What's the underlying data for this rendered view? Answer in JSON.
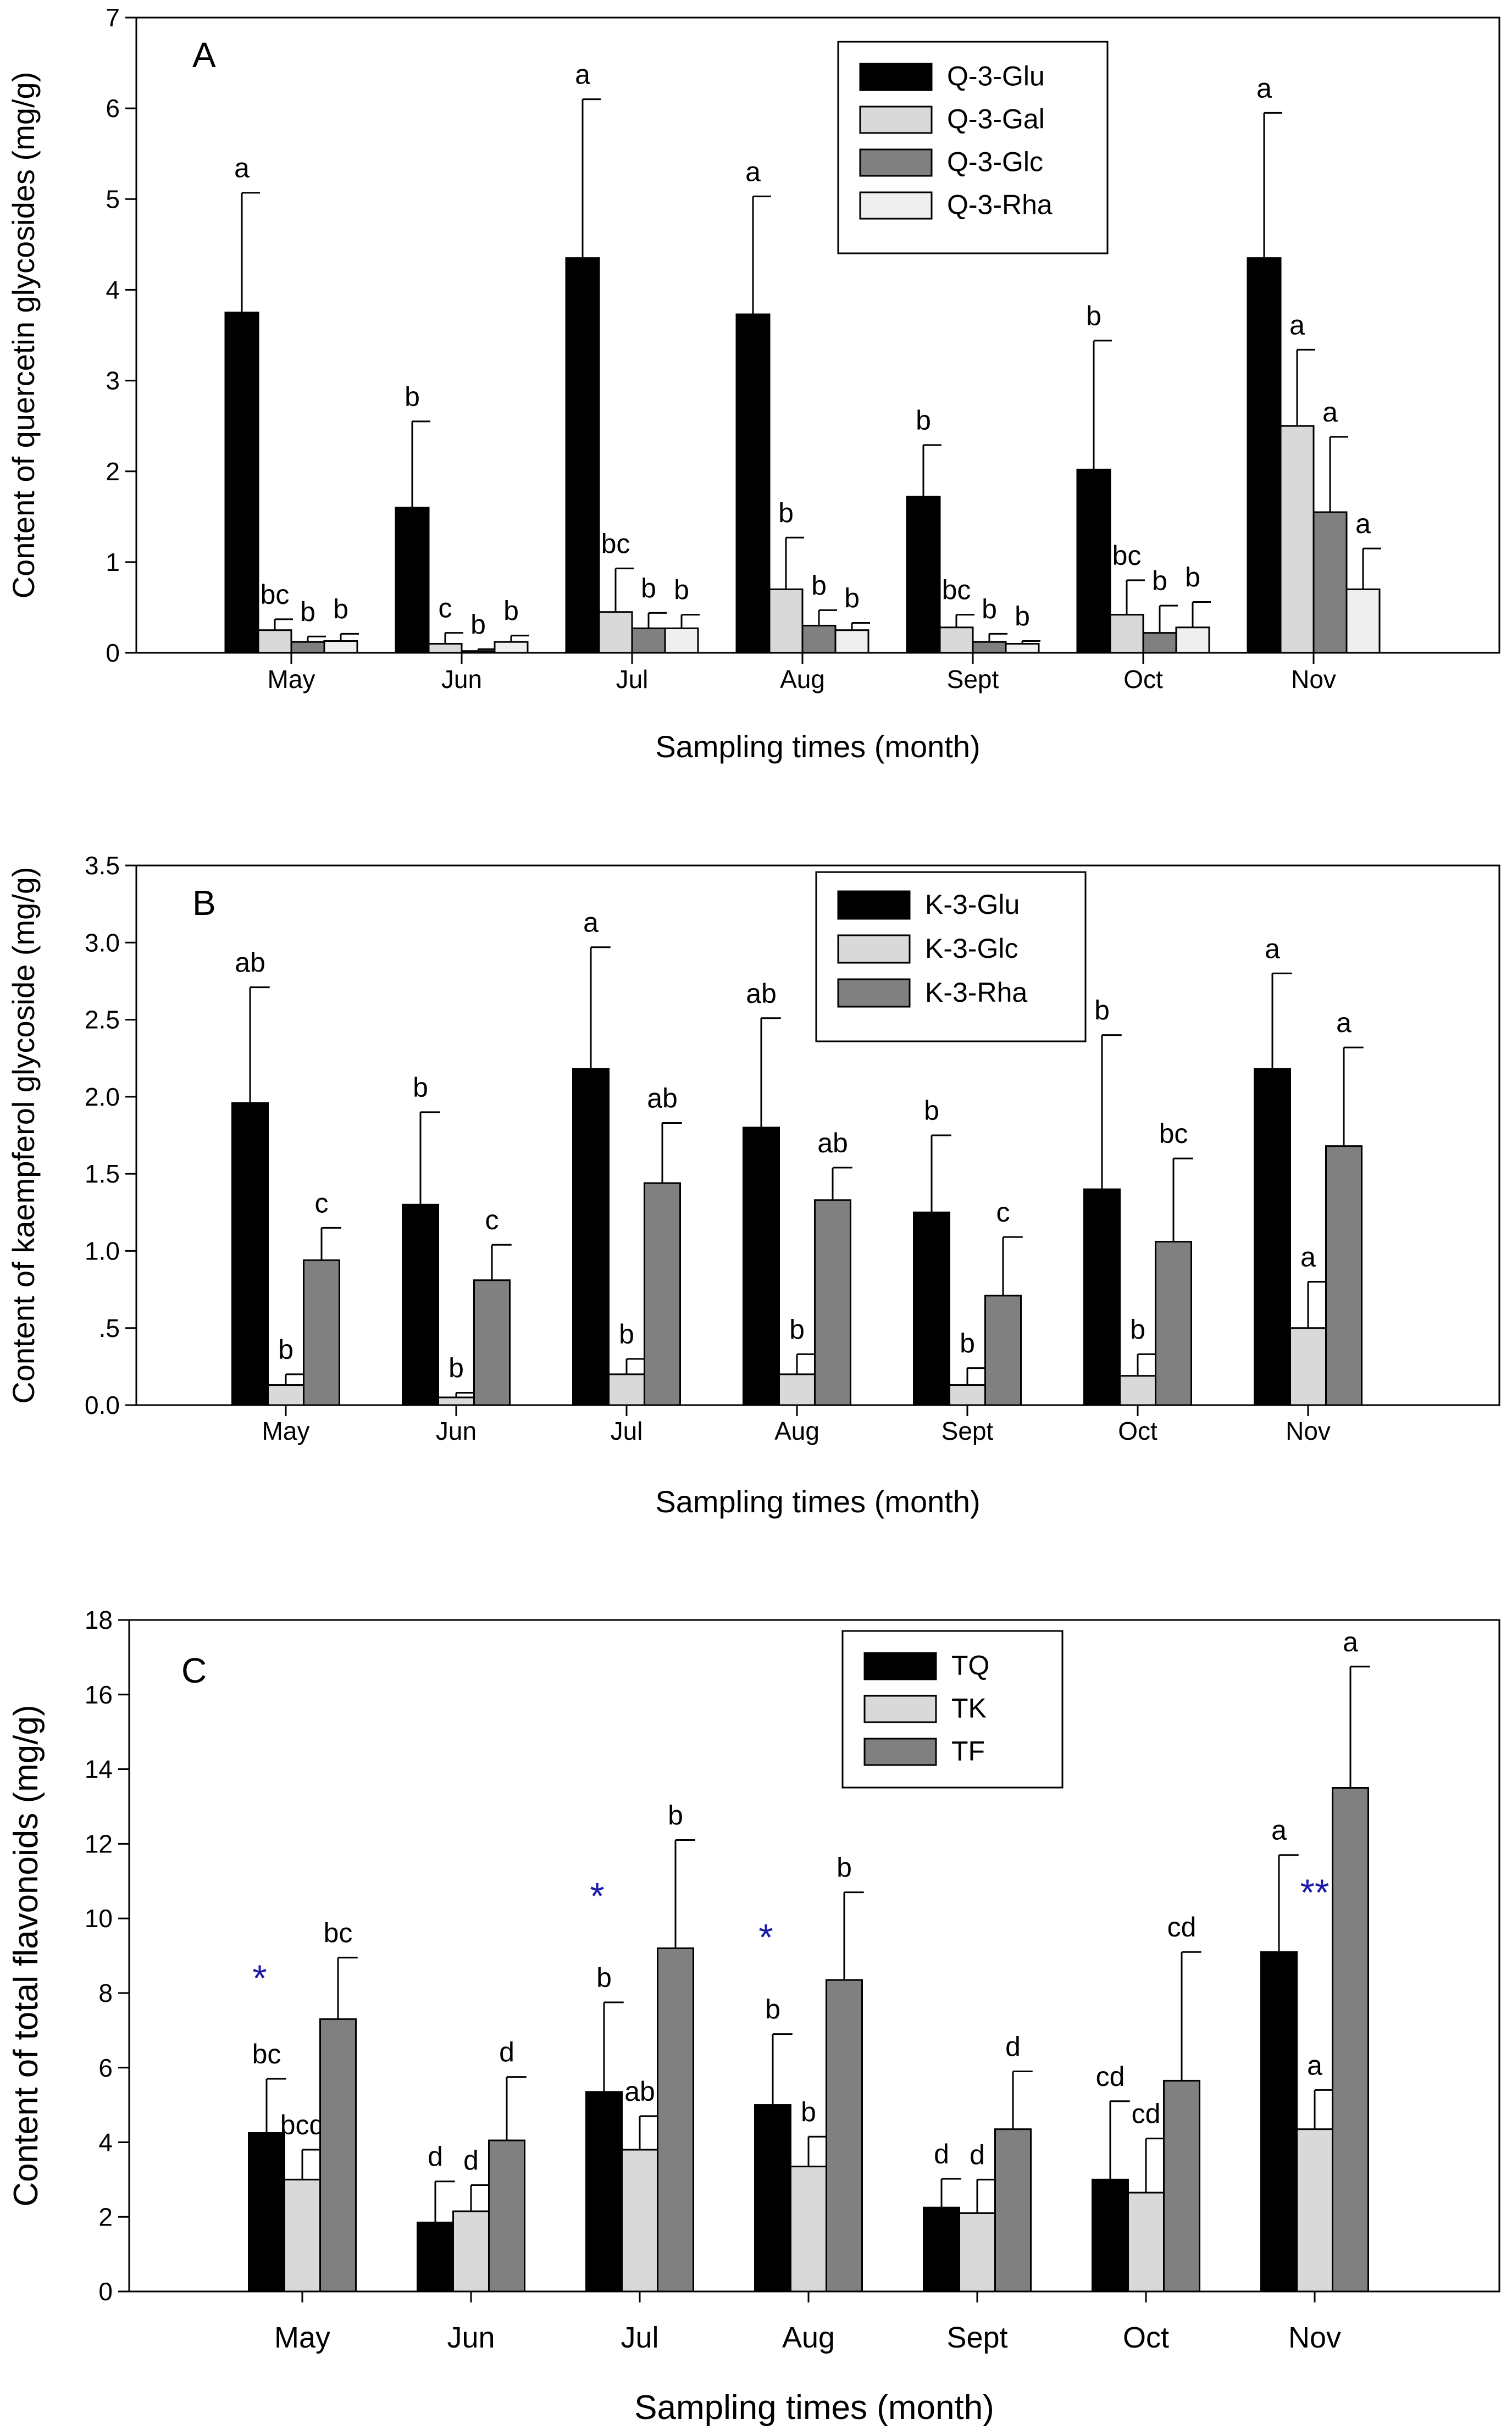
{
  "colors": {
    "black": "#000000",
    "light": "#d9d9d9",
    "dark": "#808080",
    "lighter": "#efefef",
    "star": "#1a1aa6"
  },
  "chart_data": [
    {
      "type": "bar",
      "panel_label": "A",
      "ylabel": "Content of quercetin glycosides (mg/g)",
      "xlabel": "Sampling times (month)",
      "categories": [
        "May",
        "Jun",
        "Jul",
        "Aug",
        "Sept",
        "Oct",
        "Nov"
      ],
      "ylim": [
        0,
        7
      ],
      "yticks": [
        0,
        1,
        2,
        3,
        4,
        5,
        6,
        7
      ],
      "ytick_labels": [
        "0",
        "1",
        "2",
        "3",
        "4",
        "5",
        "6",
        "7"
      ],
      "legend_position": "top-right",
      "series": [
        {
          "name": "Q-3-Glu",
          "color_key": "black",
          "values": [
            3.75,
            1.6,
            4.35,
            3.73,
            1.72,
            2.02,
            4.35
          ],
          "errors": [
            1.32,
            0.95,
            1.75,
            1.3,
            0.57,
            1.42,
            1.6
          ],
          "letters": [
            "a",
            "b",
            "a",
            "a",
            "b",
            "b",
            "a"
          ]
        },
        {
          "name": "Q-3-Gal",
          "color_key": "light",
          "values": [
            0.25,
            0.1,
            0.45,
            0.7,
            0.28,
            0.42,
            2.5
          ],
          "errors": [
            0.12,
            0.12,
            0.48,
            0.57,
            0.14,
            0.38,
            0.84
          ],
          "letters": [
            "bc",
            "c",
            "bc",
            "b",
            "bc",
            "bc",
            "a"
          ]
        },
        {
          "name": "Q-3-Glc",
          "color_key": "dark",
          "values": [
            0.12,
            0.02,
            0.27,
            0.3,
            0.12,
            0.22,
            1.55
          ],
          "errors": [
            0.06,
            0.02,
            0.17,
            0.17,
            0.09,
            0.3,
            0.83
          ],
          "letters": [
            "b",
            "b",
            "b",
            "b",
            "b",
            "b",
            "a"
          ]
        },
        {
          "name": "Q-3-Rha",
          "color_key": "lighter",
          "values": [
            0.13,
            0.12,
            0.27,
            0.25,
            0.1,
            0.28,
            0.7
          ],
          "errors": [
            0.08,
            0.07,
            0.15,
            0.08,
            0.03,
            0.28,
            0.45
          ],
          "letters": [
            "b",
            "b",
            "b",
            "b",
            "b",
            "b",
            "a"
          ]
        }
      ],
      "annotations": []
    },
    {
      "type": "bar",
      "panel_label": "B",
      "ylabel": "Content of kaempferol glycoside (mg/g)",
      "xlabel": "Sampling times (month)",
      "categories": [
        "May",
        "Jun",
        "Jul",
        "Aug",
        "Sept",
        "Oct",
        "Nov"
      ],
      "ylim": [
        0,
        3.5
      ],
      "yticks": [
        0,
        0.5,
        1.0,
        1.5,
        2.0,
        2.5,
        3.0,
        3.5
      ],
      "ytick_labels": [
        "0.0",
        ".5",
        "1.0",
        "1.5",
        "2.0",
        "2.5",
        "3.0",
        "3.5"
      ],
      "legend_position": "top-center",
      "series": [
        {
          "name": "K-3-Glu",
          "color_key": "black",
          "values": [
            1.96,
            1.3,
            2.18,
            1.8,
            1.25,
            1.4,
            2.18
          ],
          "errors": [
            0.75,
            0.6,
            0.79,
            0.71,
            0.5,
            1.0,
            0.62
          ],
          "letters": [
            "ab",
            "b",
            "a",
            "ab",
            "b",
            "b",
            "a"
          ]
        },
        {
          "name": "K-3-Glc",
          "color_key": "light",
          "values": [
            0.13,
            0.05,
            0.2,
            0.2,
            0.13,
            0.19,
            0.5
          ],
          "errors": [
            0.07,
            0.03,
            0.1,
            0.13,
            0.11,
            0.14,
            0.3
          ],
          "letters": [
            "b",
            "b",
            "b",
            "b",
            "b",
            "b",
            "a"
          ]
        },
        {
          "name": "K-3-Rha",
          "color_key": "dark",
          "values": [
            0.94,
            0.81,
            1.44,
            1.33,
            0.71,
            1.06,
            1.68
          ],
          "errors": [
            0.21,
            0.23,
            0.39,
            0.21,
            0.38,
            0.54,
            0.64
          ],
          "letters": [
            "c",
            "c",
            "ab",
            "ab",
            "c",
            "bc",
            "a"
          ]
        }
      ],
      "annotations": []
    },
    {
      "type": "bar",
      "panel_label": "C",
      "ylabel": "Content of total flavonoids (mg/g)",
      "xlabel": "Sampling times (month)",
      "categories": [
        "May",
        "Jun",
        "Jul",
        "Aug",
        "Sept",
        "Oct",
        "Nov"
      ],
      "ylim": [
        0,
        18
      ],
      "yticks": [
        0,
        2,
        4,
        6,
        8,
        10,
        12,
        14,
        16,
        18
      ],
      "ytick_labels": [
        "0",
        "2",
        "4",
        "6",
        "8",
        "10",
        "12",
        "14",
        "16",
        "18"
      ],
      "legend_position": "top-center",
      "series": [
        {
          "name": "TQ",
          "color_key": "black",
          "values": [
            4.25,
            1.85,
            5.35,
            5.0,
            2.25,
            3.0,
            9.1
          ],
          "errors": [
            1.45,
            1.1,
            2.4,
            1.9,
            0.77,
            2.1,
            2.6
          ],
          "letters": [
            "bc",
            "d",
            "b",
            "b",
            "d",
            "cd",
            "a"
          ]
        },
        {
          "name": "TK",
          "color_key": "light",
          "values": [
            3.0,
            2.15,
            3.8,
            3.35,
            2.1,
            2.65,
            4.35
          ],
          "errors": [
            0.8,
            0.7,
            0.9,
            0.8,
            0.9,
            1.45,
            1.05
          ],
          "letters": [
            "bcd",
            "d",
            "ab",
            "b",
            "d",
            "cd",
            "a"
          ]
        },
        {
          "name": "TF",
          "color_key": "dark",
          "values": [
            7.3,
            4.05,
            9.2,
            8.35,
            4.35,
            5.65,
            13.5
          ],
          "errors": [
            1.65,
            1.7,
            2.9,
            2.35,
            1.55,
            3.45,
            3.25
          ],
          "letters": [
            "bc",
            "d",
            "b",
            "b",
            "d",
            "cd",
            "a"
          ]
        }
      ],
      "annotations": [
        {
          "text": "*",
          "category_index": 0,
          "value": 8.5
        },
        {
          "text": "*",
          "category_index": 2,
          "value": 10.7
        },
        {
          "text": "*",
          "category_index": 3,
          "value": 9.6
        },
        {
          "text": "**",
          "category_index": 6,
          "value": 10.8
        }
      ]
    }
  ]
}
